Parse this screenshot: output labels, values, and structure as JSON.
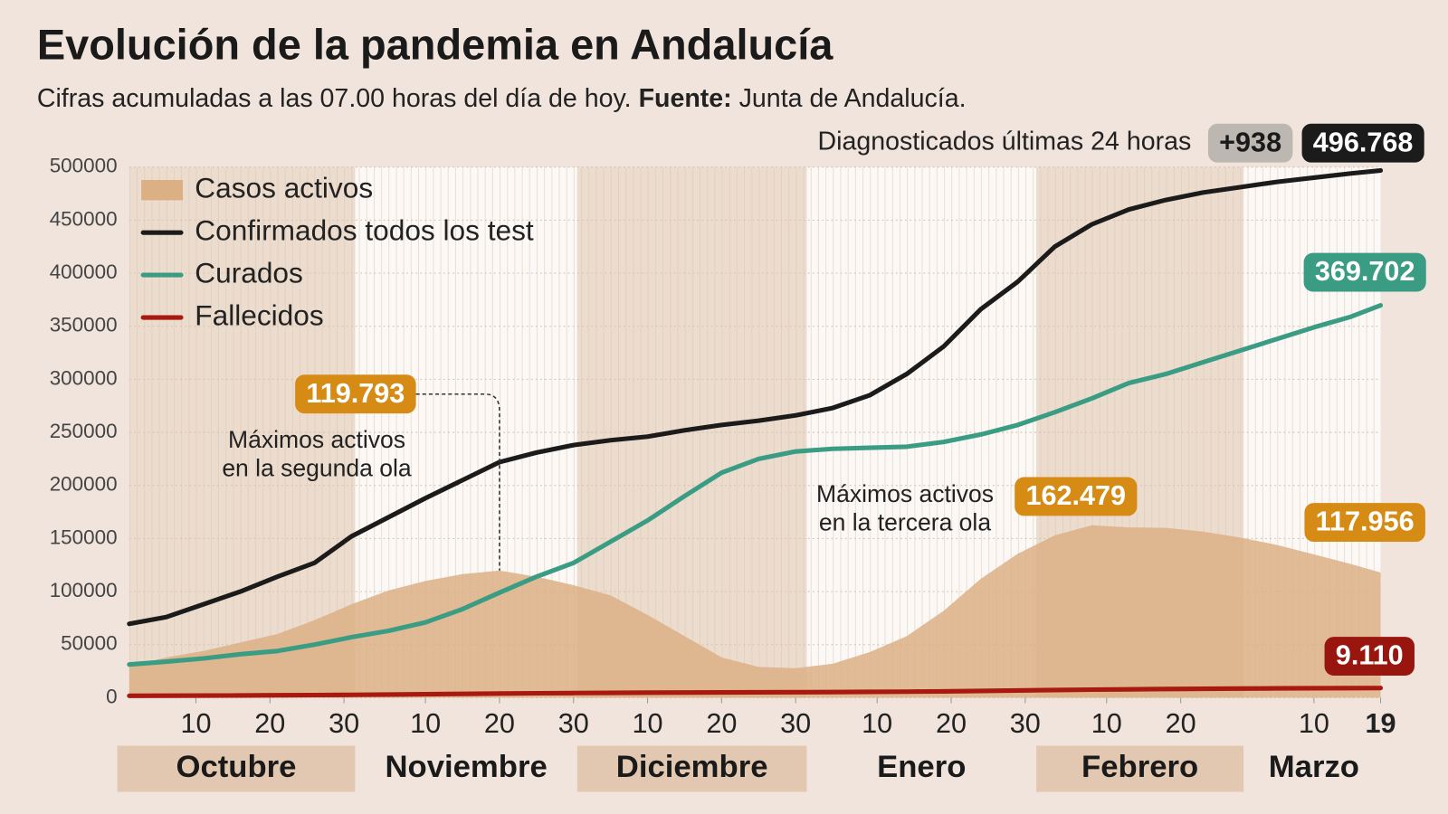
{
  "chart_data": {
    "type": "line",
    "title": "Evolución de la pandemia en Andalucía",
    "subtitle": "Cifras acumuladas a las 07.00 horas del día de hoy.",
    "source_label": "Fuente:",
    "source": "Junta de Andalucía.",
    "new_cases_label": "Diagnosticados últimas 24 horas",
    "new_cases": {
      "value": 938,
      "label": "+938"
    },
    "x": [
      1,
      6,
      11,
      16,
      21,
      26,
      31,
      36,
      41,
      46,
      51,
      56,
      61,
      66,
      71,
      76,
      81,
      86,
      91,
      96,
      101,
      106,
      111,
      116,
      121,
      126,
      131,
      136,
      141,
      146,
      151,
      156,
      161,
      166,
      170
    ],
    "xlim": [
      1,
      170
    ],
    "xticks": [
      {
        "value": 10,
        "label": "10"
      },
      {
        "value": 20,
        "label": "20"
      },
      {
        "value": 30,
        "label": "30"
      },
      {
        "value": 41,
        "label": "10"
      },
      {
        "value": 51,
        "label": "20"
      },
      {
        "value": 61,
        "label": "30"
      },
      {
        "value": 71,
        "label": "10"
      },
      {
        "value": 81,
        "label": "20"
      },
      {
        "value": 91,
        "label": "30"
      },
      {
        "value": 102,
        "label": "10"
      },
      {
        "value": 112,
        "label": "20"
      },
      {
        "value": 122,
        "label": "30"
      },
      {
        "value": 133,
        "label": "10"
      },
      {
        "value": 143,
        "label": "20"
      },
      {
        "value": 161,
        "label": "10"
      },
      {
        "value": 170,
        "label": "19"
      }
    ],
    "months": [
      {
        "label": "Octubre",
        "start": 1,
        "end": 31
      },
      {
        "label": "Noviembre",
        "start": 32,
        "end": 61
      },
      {
        "label": "Diciembre",
        "start": 62,
        "end": 92
      },
      {
        "label": "Enero",
        "start": 93,
        "end": 123
      },
      {
        "label": "Febrero",
        "start": 124,
        "end": 151
      },
      {
        "label": "Marzo",
        "start": 152,
        "end": 170
      }
    ],
    "ylim": [
      0,
      500000
    ],
    "yticks": [
      0,
      50000,
      100000,
      150000,
      200000,
      250000,
      300000,
      350000,
      400000,
      450000,
      500000
    ],
    "grid": true,
    "legend": "top-left",
    "series": [
      {
        "name": "Casos activos",
        "style": "area",
        "color": "#dcb085",
        "label_color": "#d68b14",
        "values": [
          29600,
          38000,
          44000,
          52000,
          60000,
          73000,
          88000,
          101000,
          110000,
          116500,
          119793,
          114000,
          106000,
          96500,
          78000,
          58000,
          38000,
          29000,
          27800,
          32000,
          43000,
          58000,
          82000,
          112000,
          135700,
          153000,
          162479,
          160500,
          160000,
          156500,
          151000,
          144000,
          135000,
          126000,
          117956
        ],
        "value_labels": [
          null,
          null,
          null,
          null,
          null,
          null,
          null,
          null,
          null,
          null,
          "119.793",
          null,
          null,
          null,
          null,
          null,
          null,
          null,
          null,
          null,
          null,
          null,
          null,
          null,
          null,
          null,
          "162.479",
          null,
          null,
          null,
          null,
          null,
          null,
          null,
          "117.956"
        ]
      },
      {
        "name": "Confirmados todos los test",
        "style": "line",
        "color": "#1b1b1b",
        "label_color": "#1b1b1b",
        "values": [
          69600,
          76000,
          88000,
          100000,
          114000,
          127000,
          152000,
          170000,
          188000,
          205000,
          222000,
          231000,
          238000,
          242600,
          246000,
          252000,
          257000,
          261000,
          266000,
          273000,
          285000,
          305000,
          331000,
          366000,
          392000,
          425000,
          446000,
          460000,
          469000,
          476000,
          481000,
          486000,
          490000,
          494000,
          496768
        ],
        "value_labels": [
          null,
          null,
          null,
          null,
          null,
          null,
          null,
          null,
          null,
          null,
          null,
          null,
          null,
          null,
          null,
          null,
          null,
          null,
          null,
          null,
          null,
          null,
          null,
          null,
          null,
          null,
          null,
          null,
          null,
          null,
          null,
          null,
          null,
          null,
          "496.768"
        ]
      },
      {
        "name": "Curados",
        "style": "line",
        "color": "#3b9c84",
        "label_color": "#3b9c84",
        "values": [
          31300,
          34000,
          37000,
          41000,
          44000,
          50000,
          57000,
          63000,
          71000,
          83500,
          99000,
          114000,
          127000,
          147000,
          167000,
          190000,
          212000,
          225000,
          232000,
          234500,
          235500,
          236500,
          241000,
          248000,
          257000,
          269000,
          282000,
          296500,
          305000,
          316000,
          327000,
          338000,
          349000,
          359000,
          369702
        ],
        "value_labels": [
          null,
          null,
          null,
          null,
          null,
          null,
          null,
          null,
          null,
          null,
          null,
          null,
          null,
          null,
          null,
          null,
          null,
          null,
          null,
          null,
          null,
          null,
          null,
          null,
          null,
          null,
          null,
          null,
          null,
          null,
          null,
          null,
          null,
          null,
          "369.702"
        ]
      },
      {
        "name": "Fallecidos",
        "style": "line",
        "color": "#a8190f",
        "label_color": "#98160e",
        "values": [
          1800,
          1900,
          2000,
          2100,
          2300,
          2500,
          2700,
          3000,
          3300,
          3600,
          3900,
          4200,
          4400,
          4600,
          4800,
          4900,
          5000,
          5100,
          5200,
          5300,
          5500,
          5700,
          6000,
          6400,
          6800,
          7200,
          7600,
          7900,
          8200,
          8400,
          8600,
          8800,
          8950,
          9050,
          9110
        ],
        "value_labels": [
          null,
          null,
          null,
          null,
          null,
          null,
          null,
          null,
          null,
          null,
          null,
          null,
          null,
          null,
          null,
          null,
          null,
          null,
          null,
          null,
          null,
          null,
          null,
          null,
          null,
          null,
          null,
          null,
          null,
          null,
          null,
          null,
          null,
          null,
          "9.110"
        ]
      }
    ],
    "annotations": [
      [
        "Máximos activos",
        "en la segunda ola"
      ],
      [
        "Máximos activos",
        "en la tercera ola"
      ]
    ]
  }
}
